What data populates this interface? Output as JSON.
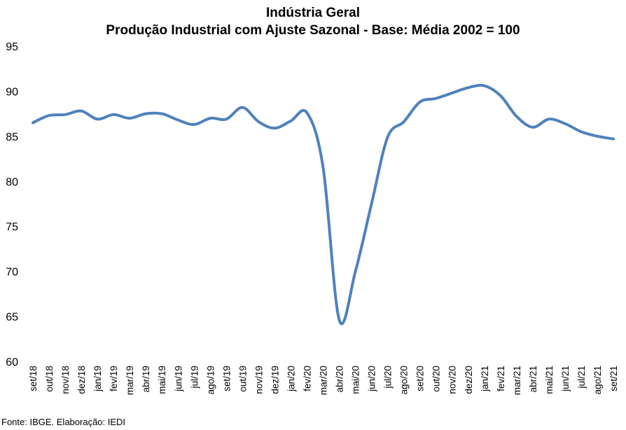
{
  "chart_data": {
    "type": "line",
    "title": "Indústria Geral",
    "subtitle": "Produção Industrial com Ajuste Sazonal - Base: Média 2002 = 100",
    "source": "Fonte: IBGE. Elaboração: IEDI",
    "xlabel": "",
    "ylabel": "",
    "ylim": [
      60,
      95
    ],
    "yticks": [
      60,
      65,
      70,
      75,
      80,
      85,
      90,
      95
    ],
    "grid": false,
    "legend": "none",
    "line_color": "#4F81BD",
    "categories": [
      "set/18",
      "out/18",
      "nov/18",
      "dez/18",
      "jan/19",
      "fev/19",
      "mar/19",
      "abr/19",
      "mai/19",
      "jun/19",
      "jul/19",
      "ago/19",
      "set/19",
      "out/19",
      "nov/19",
      "dez/19",
      "jan/20",
      "fev/20",
      "mar/20",
      "abr/20",
      "mai/20",
      "jun/20",
      "jul/20",
      "ago/20",
      "set/20",
      "out/20",
      "nov/20",
      "dez/20",
      "jan/21",
      "fev/21",
      "mar/21",
      "abr/21",
      "mai/21",
      "jun/21",
      "jul/21",
      "ago/21",
      "set/21"
    ],
    "series": [
      {
        "values": [
          86.5,
          87.3,
          87.4,
          87.8,
          86.9,
          87.4,
          87.0,
          87.5,
          87.5,
          86.8,
          86.3,
          87.0,
          86.9,
          88.2,
          86.6,
          85.9,
          86.7,
          87.6,
          81.5,
          64.6,
          70.0,
          77.5,
          84.9,
          86.6,
          88.8,
          89.2,
          89.8,
          90.4,
          90.6,
          89.5,
          87.2,
          86.0,
          86.9,
          86.4,
          85.5,
          85.0,
          84.7
        ]
      }
    ]
  }
}
